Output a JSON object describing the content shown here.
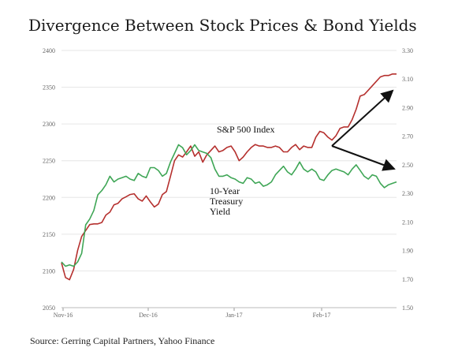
{
  "title": "Divergence Between Stock Prices & Bond Yields",
  "source": "Source: Gerring Capital Partners, Yahoo Finance",
  "chart_data": {
    "type": "line",
    "grid": true,
    "x_ticks": [
      "Nov-16",
      "Dec-16",
      "Jan-17",
      "Feb-17"
    ],
    "left_axis": {
      "ticks": [
        2050,
        2100,
        2150,
        2200,
        2250,
        2300,
        2350,
        2400
      ],
      "range": [
        2050,
        2400
      ]
    },
    "right_axis": {
      "ticks": [
        "1.50",
        "1.70",
        "1.90",
        "2.10",
        "2.30",
        "2.50",
        "2.70",
        "2.90",
        "3.10",
        "3.30"
      ],
      "range": [
        1.5,
        3.3
      ]
    },
    "series": [
      {
        "name": "S&P 500 Index",
        "axis": "left",
        "color": "#b5302e",
        "values": [
          2111,
          2091,
          2088,
          2102,
          2128,
          2147,
          2155,
          2163,
          2164,
          2164,
          2166,
          2176,
          2180,
          2190,
          2192,
          2198,
          2201,
          2204,
          2205,
          2198,
          2195,
          2202,
          2194,
          2187,
          2191,
          2204,
          2208,
          2229,
          2250,
          2258,
          2255,
          2262,
          2270,
          2256,
          2262,
          2248,
          2258,
          2264,
          2270,
          2262,
          2264,
          2268,
          2270,
          2262,
          2250,
          2255,
          2262,
          2268,
          2272,
          2270,
          2270,
          2268,
          2268,
          2270,
          2268,
          2262,
          2262,
          2268,
          2272,
          2265,
          2270,
          2268,
          2268,
          2282,
          2290,
          2288,
          2282,
          2278,
          2284,
          2294,
          2296,
          2296,
          2306,
          2320,
          2338,
          2340,
          2346,
          2352,
          2358,
          2364,
          2366,
          2366,
          2368,
          2368
        ]
      },
      {
        "name": "10-Year Treasury Yield",
        "axis": "right",
        "color": "#3fa656",
        "values": [
          1.82,
          1.79,
          1.8,
          1.79,
          1.82,
          1.88,
          2.08,
          2.12,
          2.18,
          2.29,
          2.32,
          2.36,
          2.42,
          2.38,
          2.4,
          2.41,
          2.42,
          2.4,
          2.39,
          2.44,
          2.42,
          2.41,
          2.48,
          2.48,
          2.46,
          2.42,
          2.44,
          2.52,
          2.58,
          2.64,
          2.62,
          2.57,
          2.6,
          2.64,
          2.6,
          2.59,
          2.58,
          2.55,
          2.47,
          2.42,
          2.42,
          2.43,
          2.41,
          2.4,
          2.38,
          2.37,
          2.41,
          2.4,
          2.37,
          2.38,
          2.35,
          2.36,
          2.38,
          2.43,
          2.46,
          2.49,
          2.45,
          2.43,
          2.47,
          2.52,
          2.47,
          2.45,
          2.47,
          2.45,
          2.4,
          2.39,
          2.43,
          2.46,
          2.47,
          2.46,
          2.45,
          2.43,
          2.47,
          2.5,
          2.46,
          2.42,
          2.4,
          2.43,
          2.42,
          2.37,
          2.34,
          2.36,
          2.37,
          2.38
        ]
      }
    ],
    "annotations": [
      {
        "text": "S&P 500 Index"
      },
      {
        "lines": [
          "10-Year",
          "Treasury",
          "Yield"
        ]
      }
    ],
    "arrow_color": "#111111"
  }
}
